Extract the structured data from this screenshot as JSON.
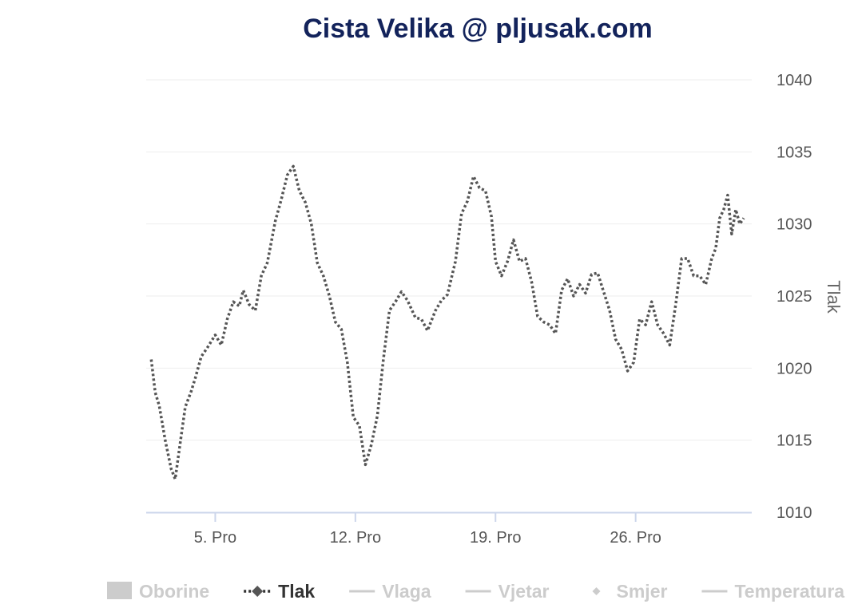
{
  "chart_data": {
    "type": "line",
    "title": "Cista Velika @ pljusak.com",
    "ylabel": "Tlak",
    "ylim": [
      1010,
      1040
    ],
    "yticks": [
      "1040",
      "1035",
      "1030",
      "1025",
      "1020",
      "1015",
      "1010"
    ],
    "xlim": [
      1.55,
      31.8
    ],
    "xticks": [
      {
        "label": "5. Pro",
        "day": 5
      },
      {
        "label": "12. Pro",
        "day": 12
      },
      {
        "label": "19. Pro",
        "day": 19
      },
      {
        "label": "26. Pro",
        "day": 26
      }
    ],
    "grid": true,
    "legend_position": "bottom",
    "colors": {
      "line": "#555555",
      "grid": "#eeeeee",
      "axis": "#ccd6eb",
      "title": "#13235b",
      "legend_hidden": "#cccccc",
      "legend_active": "#333333"
    },
    "legend": [
      {
        "name": "Oborine",
        "symbol": "box",
        "active": false
      },
      {
        "name": "Tlak",
        "symbol": "dash-diamond",
        "active": true
      },
      {
        "name": "Vlaga",
        "symbol": "line",
        "active": false
      },
      {
        "name": "Vjetar",
        "symbol": "line",
        "active": false
      },
      {
        "name": "Smjer",
        "symbol": "diamond",
        "active": false
      },
      {
        "name": "Temperatura",
        "symbol": "line",
        "active": false
      }
    ],
    "series": [
      {
        "name": "Tlak",
        "x": [
          1.8,
          2.0,
          2.2,
          2.5,
          2.8,
          3.0,
          3.2,
          3.5,
          3.8,
          4.0,
          4.3,
          4.6,
          5.0,
          5.3,
          5.6,
          5.9,
          6.2,
          6.4,
          6.7,
          7.0,
          7.3,
          7.6,
          8.0,
          8.3,
          8.6,
          8.9,
          9.2,
          9.5,
          9.8,
          10.1,
          10.4,
          10.7,
          11.0,
          11.3,
          11.6,
          11.9,
          12.2,
          12.5,
          12.8,
          13.1,
          13.4,
          13.7,
          14.0,
          14.3,
          14.6,
          15.0,
          15.3,
          15.6,
          16.0,
          16.3,
          16.6,
          17.0,
          17.3,
          17.6,
          17.9,
          18.2,
          18.5,
          18.8,
          19.0,
          19.3,
          19.6,
          19.9,
          20.2,
          20.5,
          20.8,
          21.1,
          21.4,
          21.7,
          22.0,
          22.3,
          22.6,
          22.9,
          23.2,
          23.5,
          23.8,
          24.1,
          24.4,
          24.7,
          25.0,
          25.3,
          25.6,
          25.9,
          26.2,
          26.5,
          26.8,
          27.1,
          27.4,
          27.7,
          28.0,
          28.3,
          28.6,
          28.9,
          29.2,
          29.5,
          29.8,
          30.0,
          30.2,
          30.4,
          30.6,
          30.8,
          31.0,
          31.2,
          31.4
        ],
        "y": [
          1020.6,
          1018.3,
          1017.4,
          1015.0,
          1013.0,
          1012.3,
          1014.3,
          1017.3,
          1018.4,
          1019.3,
          1020.8,
          1021.4,
          1022.3,
          1021.6,
          1023.4,
          1024.6,
          1024.3,
          1025.4,
          1024.4,
          1024.0,
          1026.4,
          1027.3,
          1030.2,
          1031.7,
          1033.4,
          1034.0,
          1032.3,
          1031.5,
          1030.0,
          1027.3,
          1026.4,
          1025.0,
          1023.2,
          1022.7,
          1020.4,
          1016.6,
          1016.0,
          1013.3,
          1014.7,
          1016.7,
          1020.6,
          1024.0,
          1024.6,
          1025.3,
          1024.7,
          1023.5,
          1023.4,
          1022.6,
          1024.0,
          1024.7,
          1025.1,
          1027.4,
          1030.7,
          1031.6,
          1033.3,
          1032.5,
          1032.3,
          1030.5,
          1027.4,
          1026.4,
          1027.4,
          1028.9,
          1027.4,
          1027.6,
          1026.0,
          1023.6,
          1023.2,
          1023.0,
          1022.4,
          1025.4,
          1026.2,
          1025.0,
          1025.8,
          1025.2,
          1026.5,
          1026.6,
          1025.3,
          1024.0,
          1022.0,
          1021.3,
          1019.8,
          1020.4,
          1023.4,
          1023.0,
          1024.6,
          1023.0,
          1022.4,
          1021.6,
          1024.4,
          1027.6,
          1027.6,
          1026.4,
          1026.4,
          1025.8,
          1027.6,
          1028.3,
          1030.4,
          1031.0,
          1032.0,
          1029.3,
          1031.0,
          1030.0,
          1030.4
        ]
      }
    ]
  }
}
